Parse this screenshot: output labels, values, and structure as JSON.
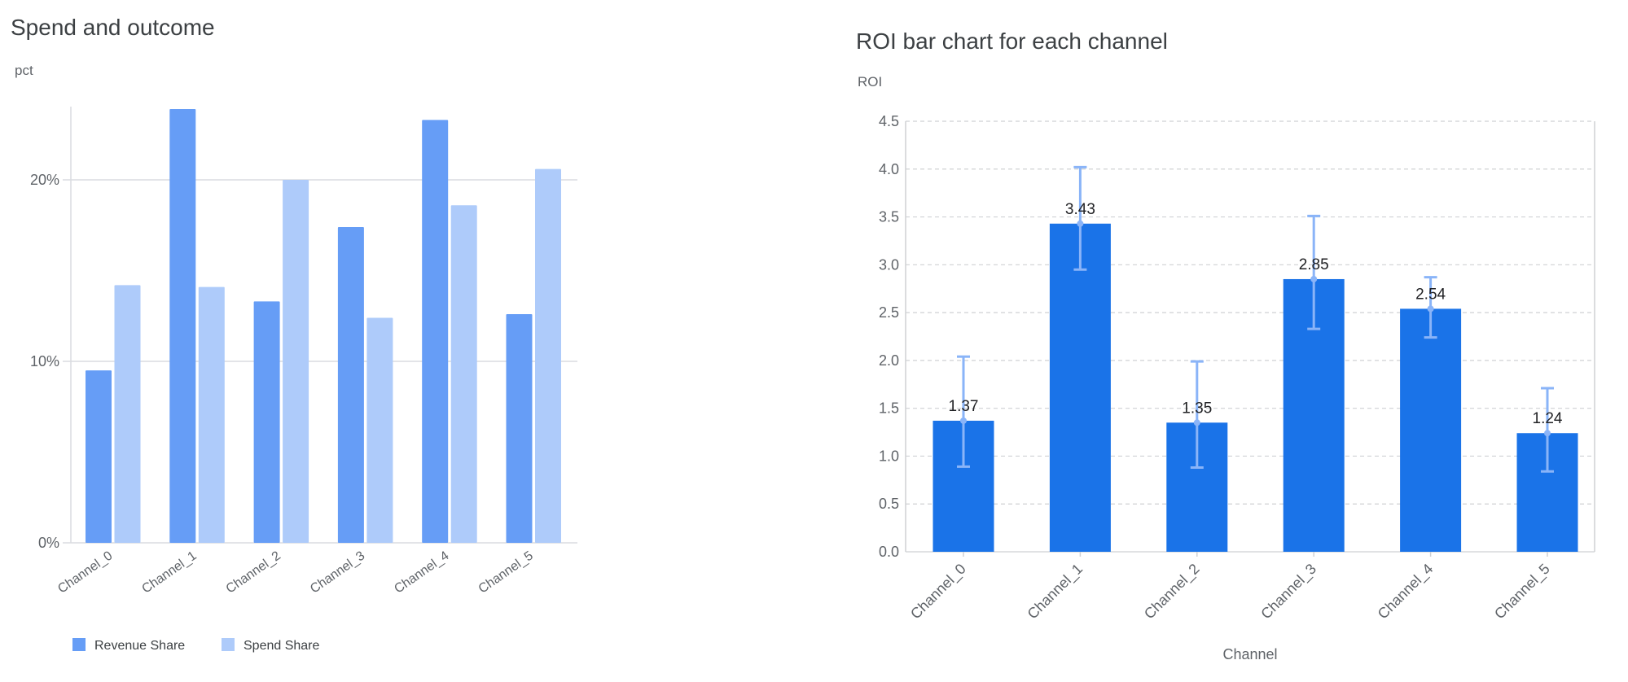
{
  "chart_data": [
    {
      "type": "bar",
      "title": "Spend and outcome",
      "ylabel": "pct",
      "xlabel": "",
      "categories": [
        "Channel_0",
        "Channel_1",
        "Channel_2",
        "Channel_3",
        "Channel_4",
        "Channel_5"
      ],
      "series": [
        {
          "name": "Revenue Share",
          "color": "#669df6",
          "values": [
            9.5,
            23.9,
            13.3,
            17.4,
            23.3,
            12.6
          ]
        },
        {
          "name": "Spend Share",
          "color": "#aecbfa",
          "values": [
            14.2,
            14.1,
            20.0,
            12.4,
            18.6,
            20.6
          ]
        }
      ],
      "ylim": [
        0,
        24
      ],
      "yticks": [
        0,
        10,
        20
      ],
      "ytick_labels": [
        "0%",
        "10%",
        "20%"
      ],
      "grid": true,
      "legend": "bottom-left"
    },
    {
      "type": "bar",
      "title": "ROI bar chart for each channel",
      "ylabel": "ROI",
      "xlabel": "Channel",
      "categories": [
        "Channel_0",
        "Channel_1",
        "Channel_2",
        "Channel_3",
        "Channel_4",
        "Channel_5"
      ],
      "values": [
        1.37,
        3.43,
        1.35,
        2.85,
        2.54,
        1.24
      ],
      "data_labels": [
        "1.37",
        "3.43",
        "1.35",
        "2.85",
        "2.54",
        "1.24"
      ],
      "error_low": [
        0.89,
        2.95,
        0.88,
        2.33,
        2.24,
        0.84
      ],
      "error_high": [
        2.04,
        4.02,
        1.99,
        3.51,
        2.87,
        1.71
      ],
      "color": "#1a73e8",
      "error_color": "#8ab4f8",
      "ylim": [
        0,
        4.5
      ],
      "yticks": [
        "0.0",
        "0.5",
        "1.0",
        "1.5",
        "2.0",
        "2.5",
        "3.0",
        "3.5",
        "4.0",
        "4.5"
      ],
      "grid": true,
      "grid_style": "dashed"
    }
  ]
}
